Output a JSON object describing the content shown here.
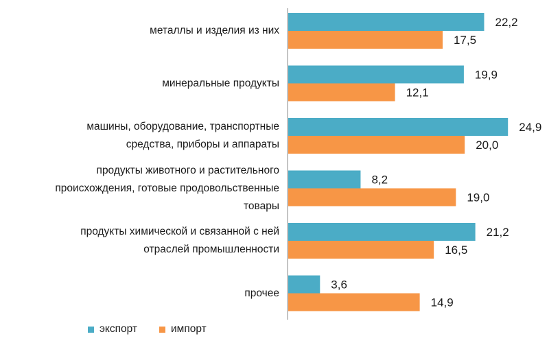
{
  "chart_data": {
    "type": "bar",
    "orientation": "horizontal",
    "categories": [
      "металлы и изделия из них",
      "минеральные продукты",
      "машины, оборудование, транспортные\nсредства, приборы и аппараты",
      "продукты животного и растительного\nпроисхождения, готовые продовольственные\nтовары",
      "продукты химической и связанной с ней\nотраслей промышленности",
      "прочее"
    ],
    "series": [
      {
        "name": "экспорт",
        "color": "#4bacc6",
        "values": [
          22.2,
          19.9,
          24.9,
          8.2,
          21.2,
          3.6
        ],
        "labels": [
          "22,2",
          "19,9",
          "24,9",
          "8,2",
          "21,2",
          "3,6"
        ]
      },
      {
        "name": "импорт",
        "color": "#f79646",
        "values": [
          17.5,
          12.1,
          20.0,
          19.0,
          16.5,
          14.9
        ],
        "labels": [
          "17,5",
          "12,1",
          "20,0",
          "19,0",
          "16,5",
          "14,9"
        ]
      }
    ],
    "title": "",
    "xlabel": "",
    "ylabel": "",
    "xlim": [
      0,
      26
    ],
    "legend_position": "bottom-left"
  }
}
